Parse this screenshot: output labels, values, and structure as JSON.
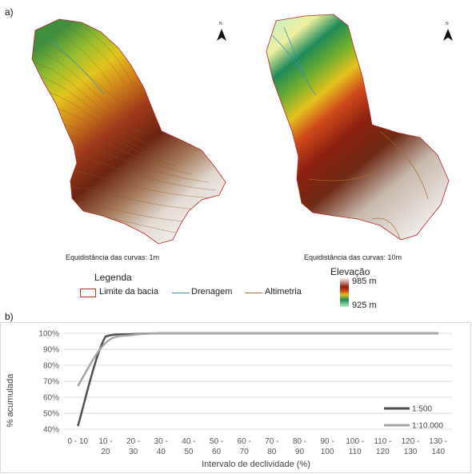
{
  "panel_a_label": "a)",
  "panel_b_label": "b)",
  "maps": {
    "left_caption": "Equidistância das curvas: 1m",
    "right_caption": "Equidistância das curvas: 10m",
    "north_symbol": "N"
  },
  "legend": {
    "title": "Legenda",
    "items": [
      {
        "label": "Limite da bacia",
        "color": "#c0392b",
        "kind": "box"
      },
      {
        "label": "Drenagem",
        "color": "#3a8fb7",
        "kind": "line"
      },
      {
        "label": "Altimetria",
        "color": "#a6702a",
        "kind": "line"
      }
    ],
    "elevation_title": "Elevação",
    "elevation_max": "985 m",
    "elevation_min": "925 m"
  },
  "chart_data": {
    "type": "line",
    "xlabel": "Intervalo  de declividade  (%)",
    "ylabel": "% acumulada",
    "ylim": [
      40,
      100
    ],
    "yticks": [
      "40%",
      "50%",
      "60%",
      "70%",
      "80%",
      "90%",
      "100%"
    ],
    "grid": true,
    "legend_position": "bottom-right",
    "categories": [
      [
        "0 - 10"
      ],
      [
        "10 -",
        "20"
      ],
      [
        "20 -",
        "30"
      ],
      [
        "30 -",
        "40"
      ],
      [
        "40 -",
        "50"
      ],
      [
        "50 -",
        "60"
      ],
      [
        "60 -",
        "70"
      ],
      [
        "70 -",
        "80"
      ],
      [
        "80 -",
        "90"
      ],
      [
        "90 -",
        "100"
      ],
      [
        "100 -",
        "110"
      ],
      [
        "110 -",
        "120"
      ],
      [
        "120 -",
        "130"
      ],
      [
        "130 -",
        "140"
      ]
    ],
    "series": [
      {
        "name": "1:500",
        "color": "#505050",
        "values": [
          42,
          98,
          99.5,
          100,
          100,
          100,
          100,
          100,
          100,
          100,
          100,
          100,
          100,
          100
        ]
      },
      {
        "name": "1:10.000",
        "color": "#a6a6a6",
        "values": [
          67,
          94,
          99,
          100,
          100,
          100,
          100,
          100,
          100,
          100,
          100,
          100,
          100,
          100
        ]
      }
    ]
  }
}
